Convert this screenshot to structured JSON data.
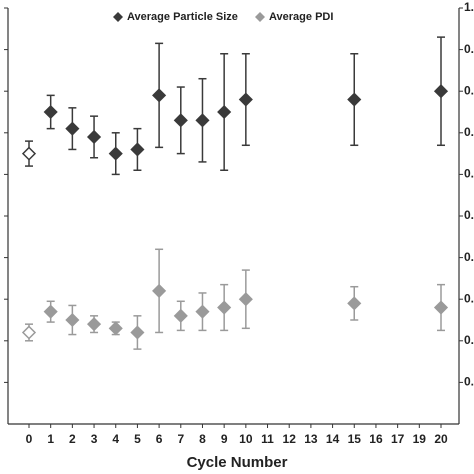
{
  "chart_data": {
    "type": "scatter",
    "x_label": "Cycle Number",
    "categories": [
      "0",
      "1",
      "2",
      "3",
      "4",
      "5",
      "6",
      "7",
      "8",
      "9",
      "10",
      "11",
      "12",
      "13",
      "14",
      "15",
      "16",
      "17",
      "19",
      "20"
    ],
    "series": [
      {
        "name": "Average Particle Size",
        "color": "#3a3a3a",
        "axis": "y2",
        "values": [
          0.65,
          0.75,
          0.71,
          0.69,
          0.65,
          0.66,
          0.79,
          0.73,
          0.73,
          0.75,
          0.78,
          null,
          null,
          null,
          null,
          0.78,
          null,
          null,
          null,
          0.8
        ],
        "errors": [
          0.03,
          0.04,
          0.05,
          0.05,
          0.05,
          0.05,
          0.125,
          0.08,
          0.1,
          0.14,
          0.11,
          null,
          null,
          null,
          null,
          0.11,
          null,
          null,
          null,
          0.13
        ]
      },
      {
        "name": "Average PDI",
        "color": "#9a9a9a",
        "axis": "y2",
        "values": [
          0.22,
          0.27,
          0.25,
          0.24,
          0.23,
          0.22,
          0.32,
          0.26,
          0.27,
          0.28,
          0.3,
          null,
          null,
          null,
          null,
          0.29,
          null,
          null,
          null,
          0.28
        ],
        "errors": [
          0.02,
          0.025,
          0.035,
          0.02,
          0.015,
          0.04,
          0.1,
          0.035,
          0.045,
          0.055,
          0.07,
          null,
          null,
          null,
          null,
          0.04,
          null,
          null,
          null,
          0.055
        ]
      }
    ],
    "hollow_first": true,
    "y2lim": [
      0,
      1.0
    ],
    "y2ticks": [
      {
        "value": 1.0,
        "label": "1."
      },
      {
        "value": 0.9,
        "label": "0."
      },
      {
        "value": 0.8,
        "label": "0."
      },
      {
        "value": 0.7,
        "label": "0."
      },
      {
        "value": 0.6,
        "label": "0."
      },
      {
        "value": 0.5,
        "label": "0."
      },
      {
        "value": 0.4,
        "label": "0."
      },
      {
        "value": 0.3,
        "label": "0."
      },
      {
        "value": 0.2,
        "label": "0."
      },
      {
        "value": 0.1,
        "label": "0."
      }
    ],
    "legend": "top"
  }
}
